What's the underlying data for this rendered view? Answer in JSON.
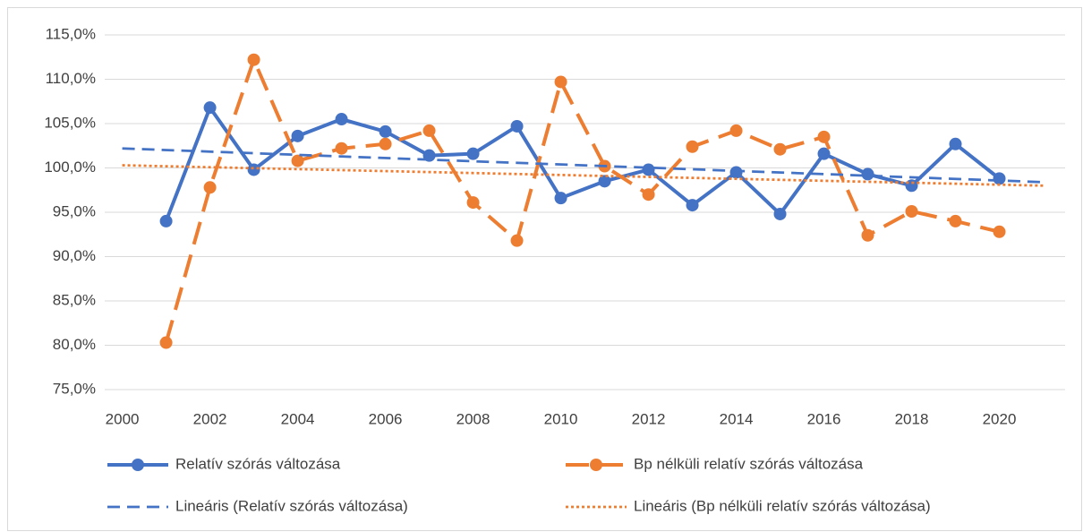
{
  "chart_data": {
    "type": "line",
    "xlim": [
      1999.6,
      2021.5
    ],
    "xticks": [
      2000,
      2002,
      2004,
      2006,
      2008,
      2010,
      2012,
      2014,
      2016,
      2018,
      2020
    ],
    "ylim": [
      75,
      115
    ],
    "yticks": [
      {
        "value": 75,
        "label": "75,0%"
      },
      {
        "value": 80,
        "label": "80,0%"
      },
      {
        "value": 85,
        "label": "85,0%"
      },
      {
        "value": 90,
        "label": "90,0%"
      },
      {
        "value": 95,
        "label": "95,0%"
      },
      {
        "value": 100,
        "label": "100,0%"
      },
      {
        "value": 105,
        "label": "105,0%"
      },
      {
        "value": 110,
        "label": "110,0%"
      },
      {
        "value": 115,
        "label": "115,0%"
      }
    ],
    "grid": true,
    "legend": "bottom",
    "series": [
      {
        "name": "Relatív szórás változása",
        "color": "#4472c4",
        "line_style": "solid",
        "marker": true,
        "x": [
          2001,
          2002,
          2003,
          2004,
          2005,
          2006,
          2007,
          2008,
          2009,
          2010,
          2011,
          2012,
          2013,
          2014,
          2015,
          2016,
          2017,
          2018,
          2019,
          2020
        ],
        "values": [
          94.0,
          106.8,
          99.8,
          103.6,
          105.5,
          104.1,
          101.4,
          101.6,
          104.7,
          96.6,
          98.5,
          99.8,
          95.8,
          99.5,
          94.8,
          101.6,
          99.3,
          98.0,
          102.7,
          98.8
        ]
      },
      {
        "name": "Bp nélküli relatív szórás változása",
        "color": "#ed7d31",
        "line_style": "long-dash",
        "marker": true,
        "x": [
          2001,
          2002,
          2003,
          2004,
          2005,
          2006,
          2007,
          2008,
          2009,
          2010,
          2011,
          2012,
          2013,
          2014,
          2015,
          2016,
          2017,
          2018,
          2019,
          2020
        ],
        "values": [
          80.3,
          97.8,
          112.2,
          100.8,
          102.2,
          102.7,
          104.2,
          96.1,
          91.8,
          109.7,
          100.2,
          97.0,
          102.4,
          104.2,
          102.1,
          103.5,
          92.4,
          95.1,
          94.0,
          92.8
        ]
      },
      {
        "name": "Lineáris (Relatív szórás változása)",
        "color": "#4472c4",
        "line_style": "dash",
        "marker": false,
        "x": [
          2000,
          2021
        ],
        "values": [
          102.2,
          98.4
        ]
      },
      {
        "name": "Lineáris (Bp nélküli relatív szórás változása)",
        "color": "#ed7d31",
        "line_style": "dot",
        "marker": false,
        "x": [
          2000,
          2021
        ],
        "values": [
          100.3,
          98.0
        ]
      }
    ]
  }
}
